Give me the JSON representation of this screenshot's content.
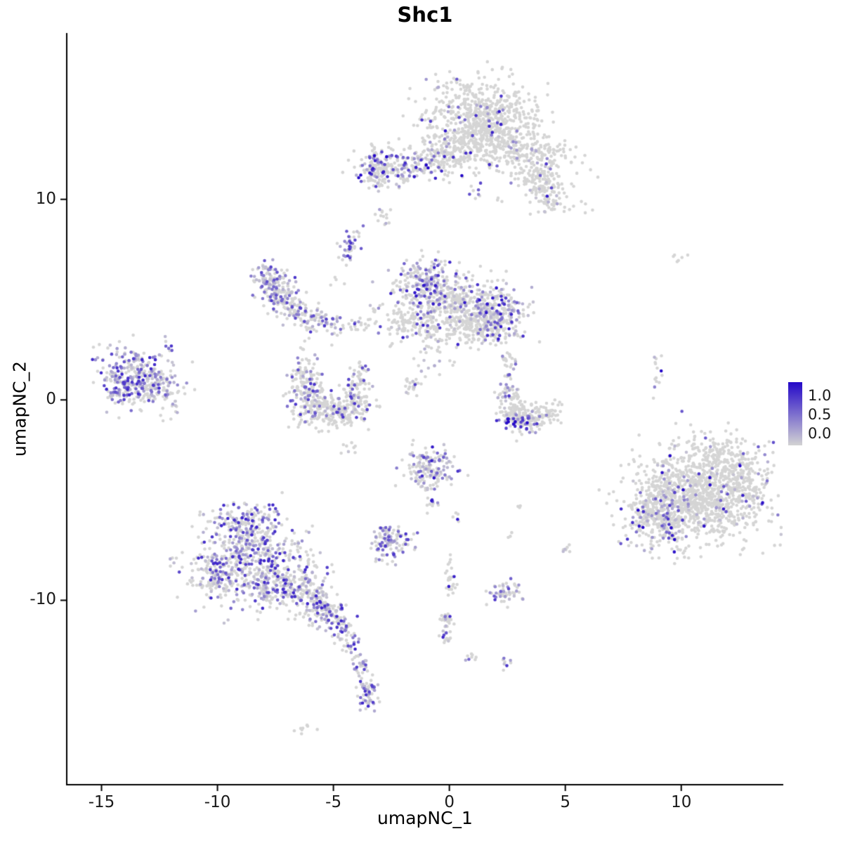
{
  "chart_data": {
    "type": "scatter",
    "title": "Shc1",
    "xlabel": "umapNC_1",
    "ylabel": "umapNC_2",
    "x_ticks": [
      -15,
      -10,
      -5,
      0,
      5,
      10
    ],
    "y_ticks": [
      -10,
      0,
      10
    ],
    "xlim": [
      -16.5,
      14.4
    ],
    "ylim": [
      -19.2,
      18.3
    ],
    "grid": false,
    "legend": {
      "position": "right",
      "labels": [
        "1.0",
        "0.5",
        "0.0"
      ],
      "low_color": "#D3D3D3",
      "high_color": "#2408C8"
    },
    "point_color_zero": "#D5D5D5",
    "value_color_max": 1.3,
    "clusters": [
      {
        "name": "top-main",
        "frac": 0.07,
        "vmax": 1.2,
        "blobs": [
          [
            1.3,
            14.1,
            1.15,
            0.95,
            620
          ],
          [
            2.6,
            12.6,
            0.9,
            0.7,
            240
          ],
          [
            0.2,
            12.4,
            0.7,
            0.5,
            140
          ],
          [
            3.9,
            11.2,
            0.5,
            0.6,
            85
          ],
          [
            4.6,
            12.3,
            0.4,
            0.4,
            40
          ],
          [
            5.8,
            10.6,
            0.5,
            0.9,
            10,
            0.1
          ]
        ],
        "segments": [
          [
            3.9,
            10.9,
            4.7,
            9.6,
            0.35,
            85
          ]
        ]
      },
      {
        "name": "top-left-arm",
        "frac": 0.3,
        "vmax": 1.3,
        "blobs": [
          [
            -1.9,
            11.6,
            0.9,
            0.45,
            165
          ],
          [
            -3.1,
            11.5,
            0.45,
            0.5,
            105
          ],
          [
            -0.7,
            11.95,
            0.4,
            0.3,
            40,
            0.15
          ]
        ]
      },
      {
        "name": "top-satellites",
        "frac": 0.3,
        "vmax": 1.0,
        "blobs": [
          [
            -2.9,
            9.2,
            0.2,
            0.25,
            13
          ],
          [
            1.1,
            10.3,
            0.15,
            0.3,
            8,
            0.5
          ],
          [
            2.1,
            9.9,
            0.1,
            0.12,
            3,
            0
          ]
        ]
      },
      {
        "name": "center-main",
        "frac": 0.12,
        "vmax": 1.2,
        "blobs": [
          [
            -0.9,
            5.7,
            0.75,
            0.65,
            250,
            0.4
          ],
          [
            0.5,
            4.6,
            1.0,
            0.8,
            370
          ],
          [
            2.1,
            4.25,
            0.55,
            0.6,
            210,
            0.45
          ],
          [
            -1.6,
            3.9,
            0.6,
            0.45,
            115,
            0.15
          ],
          [
            1.2,
            3.4,
            0.8,
            0.35,
            115
          ]
        ]
      },
      {
        "name": "left-arm",
        "frac": 0.4,
        "vmax": 1.0,
        "blobs": [
          [
            -7.9,
            5.9,
            0.3,
            0.4,
            50,
            0.5
          ]
        ],
        "segments": [
          [
            -7.7,
            6.4,
            -7.2,
            4.9,
            0.35,
            115,
            0.45
          ],
          [
            -7.2,
            4.9,
            -6.2,
            4.15,
            0.35,
            95,
            0.35
          ],
          [
            -6.2,
            4.15,
            -4.9,
            3.6,
            0.3,
            65,
            0.3
          ],
          [
            -4.9,
            3.6,
            -2.7,
            3.9,
            0.22,
            26,
            0.2
          ]
        ]
      },
      {
        "name": "strand-up",
        "frac": 0.5,
        "vmax": 1.0,
        "segments": [
          [
            -4.45,
            7.0,
            -4.15,
            8.45,
            0.18,
            42
          ]
        ]
      },
      {
        "name": "left-main",
        "frac": 0.55,
        "vmax": 1.1,
        "blobs": [
          [
            -13.5,
            1.2,
            0.9,
            0.75,
            250
          ],
          [
            -12.6,
            0.6,
            0.6,
            0.5,
            85,
            0.3
          ],
          [
            -14.2,
            0.7,
            0.4,
            0.4,
            55,
            0.5
          ],
          [
            -12.0,
            2.55,
            0.15,
            0.15,
            6,
            0.5
          ],
          [
            -11.8,
            -0.3,
            0.12,
            0.1,
            3,
            0
          ],
          [
            -12.3,
            -0.9,
            0.1,
            0.1,
            3,
            0.3
          ]
        ]
      },
      {
        "name": "c-cluster",
        "frac": 0.12,
        "vmax": 1.0,
        "blobs": [
          [
            -6.15,
            0.5,
            0.4,
            0.75,
            135,
            0.22
          ],
          [
            -5.2,
            -0.55,
            0.75,
            0.4,
            210
          ],
          [
            -4.05,
            0.1,
            0.35,
            0.55,
            105
          ],
          [
            -6.3,
            1.5,
            0.2,
            0.3,
            24,
            0.3
          ],
          [
            -3.8,
            1.2,
            0.18,
            0.3,
            28,
            0.15
          ],
          [
            -4.4,
            -2.2,
            0.3,
            0.25,
            8,
            0.1
          ]
        ]
      },
      {
        "name": "center-tail",
        "frac": 0.3,
        "vmax": 1.0,
        "segments": [
          [
            -0.6,
            2.9,
            -1.7,
            0.4,
            0.28,
            42
          ]
        ]
      },
      {
        "name": "right-mid",
        "frac": 0.15,
        "vmax": 1.0,
        "blobs": [
          [
            2.65,
            0.3,
            0.25,
            0.3,
            38,
            0.2
          ]
        ],
        "segments": [
          [
            2.5,
            -0.5,
            3.4,
            -1.05,
            0.35,
            150,
            0.18
          ],
          [
            3.4,
            -1.05,
            4.55,
            -0.5,
            0.3,
            85,
            0.12
          ],
          [
            2.45,
            2.3,
            2.65,
            1.1,
            0.15,
            26,
            0.25
          ]
        ]
      },
      {
        "name": "right-mid-dark",
        "frac": 0.75,
        "vmax": 1.3,
        "vbias": 0.5,
        "blobs": [
          [
            2.8,
            -1.15,
            0.3,
            0.18,
            22
          ]
        ]
      },
      {
        "name": "mid-small",
        "frac": 0.45,
        "vmax": 1.2,
        "blobs": [
          [
            -0.8,
            -3.4,
            0.55,
            0.5,
            155
          ],
          [
            0.3,
            -5.8,
            0.12,
            0.15,
            5,
            0.2
          ]
        ],
        "segments": [
          [
            -0.85,
            -4.3,
            -0.7,
            -5.6,
            0.15,
            20,
            0.25
          ]
        ]
      },
      {
        "name": "mid-small2",
        "frac": 0.5,
        "vmax": 1.0,
        "blobs": [
          [
            -2.6,
            -7.1,
            0.45,
            0.4,
            115
          ]
        ]
      },
      {
        "name": "bottom-left",
        "frac": 0.45,
        "vmax": 1.1,
        "blobs": [
          [
            -8.6,
            -8.1,
            1.25,
            1.05,
            500
          ],
          [
            -8.8,
            -6.1,
            0.8,
            0.55,
            165
          ],
          [
            -7.0,
            -9.2,
            0.8,
            0.55,
            175,
            0.4
          ],
          [
            -9.9,
            -8.9,
            0.5,
            0.5,
            85,
            0.35
          ],
          [
            -3.5,
            -14.7,
            0.28,
            0.5,
            52,
            0.5
          ]
        ],
        "segments": [
          [
            -6.4,
            -9.6,
            -4.9,
            -10.9,
            0.4,
            165,
            0.5
          ],
          [
            -4.9,
            -10.9,
            -4.2,
            -12.3,
            0.25,
            55,
            0.45
          ],
          [
            -4.0,
            -12.7,
            -3.6,
            -14.1,
            0.18,
            32,
            0.5
          ]
        ]
      },
      {
        "name": "bottom-dash",
        "frac": 0,
        "vmax": 1.0,
        "blobs": [
          [
            -6.2,
            -16.4,
            0.3,
            0.12,
            9
          ]
        ]
      },
      {
        "name": "right-big",
        "frac": 0.07,
        "vmax": 1.3,
        "blobs": [
          [
            10.8,
            -4.7,
            1.45,
            1.15,
            1100
          ],
          [
            9.0,
            -5.9,
            0.7,
            0.85,
            270,
            0.22
          ],
          [
            11.8,
            -2.9,
            0.7,
            0.5,
            115,
            0.05
          ],
          [
            12.6,
            -4.3,
            0.5,
            0.7,
            85,
            0.05
          ],
          [
            9.75,
            7.05,
            0.2,
            0.15,
            6,
            0
          ]
        ],
        "segments": [
          [
            8.85,
            2.6,
            9.05,
            -0.3,
            0.12,
            14,
            0.12
          ]
        ]
      },
      {
        "name": "bottom-misc",
        "frac": 0.3,
        "vmax": 1.2,
        "blobs": [
          [
            2.4,
            -9.6,
            0.35,
            0.3,
            52,
            0.4
          ],
          [
            0.05,
            -8.9,
            0.15,
            0.4,
            25,
            0.08
          ],
          [
            0.9,
            -12.8,
            0.15,
            0.2,
            8
          ],
          [
            2.4,
            -13.1,
            0.15,
            0.18,
            8,
            0.6
          ],
          [
            5.0,
            -7.45,
            0.15,
            0.18,
            7,
            0.6
          ],
          [
            3.1,
            -5.3,
            0.1,
            0.1,
            4,
            0
          ],
          [
            2.7,
            -6.7,
            0.1,
            0.1,
            3,
            0
          ]
        ],
        "segments": [
          [
            -0.15,
            -10.7,
            -0.05,
            -12.1,
            0.12,
            38,
            0.25
          ]
        ]
      },
      {
        "name": "scatter-singles",
        "frac": 0.25,
        "vmax": 1.0,
        "blobs": [
          [
            -3.3,
            4.6,
            0.2,
            0.2,
            6
          ],
          [
            -4.7,
            5.9,
            0.15,
            0.15,
            4
          ],
          [
            -2.5,
            2.7,
            0.1,
            0.1,
            3,
            0
          ],
          [
            0.1,
            1.9,
            0.1,
            0.1,
            3,
            0
          ]
        ]
      }
    ]
  }
}
